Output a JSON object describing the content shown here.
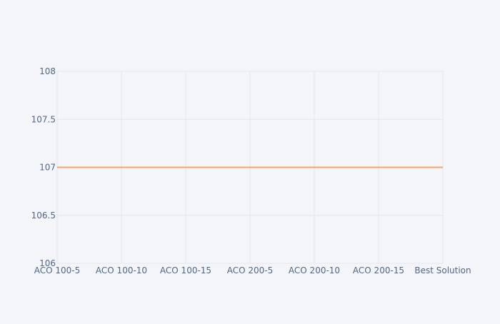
{
  "chart_data": {
    "type": "line",
    "title": "",
    "xlabel": "",
    "ylabel": "",
    "categories": [
      "ACO 100-5",
      "ACO 100-10",
      "ACO 100-15",
      "ACO 200-5",
      "ACO 200-10",
      "ACO 200-15",
      "Best Solution"
    ],
    "series": [
      {
        "values": [
          107,
          107,
          107,
          107,
          107,
          107,
          107
        ]
      }
    ],
    "ylim": [
      106,
      108
    ],
    "yticks": [
      106,
      106.5,
      107,
      107.5,
      108
    ],
    "ytick_labels": [
      "106",
      "106.5",
      "107",
      "107.5",
      "108"
    ],
    "grid": true,
    "colors": {
      "background": "#f4f5f9",
      "grid": "#e3e6ee",
      "tick_text": "#506784",
      "line": "#f2a46b"
    }
  }
}
